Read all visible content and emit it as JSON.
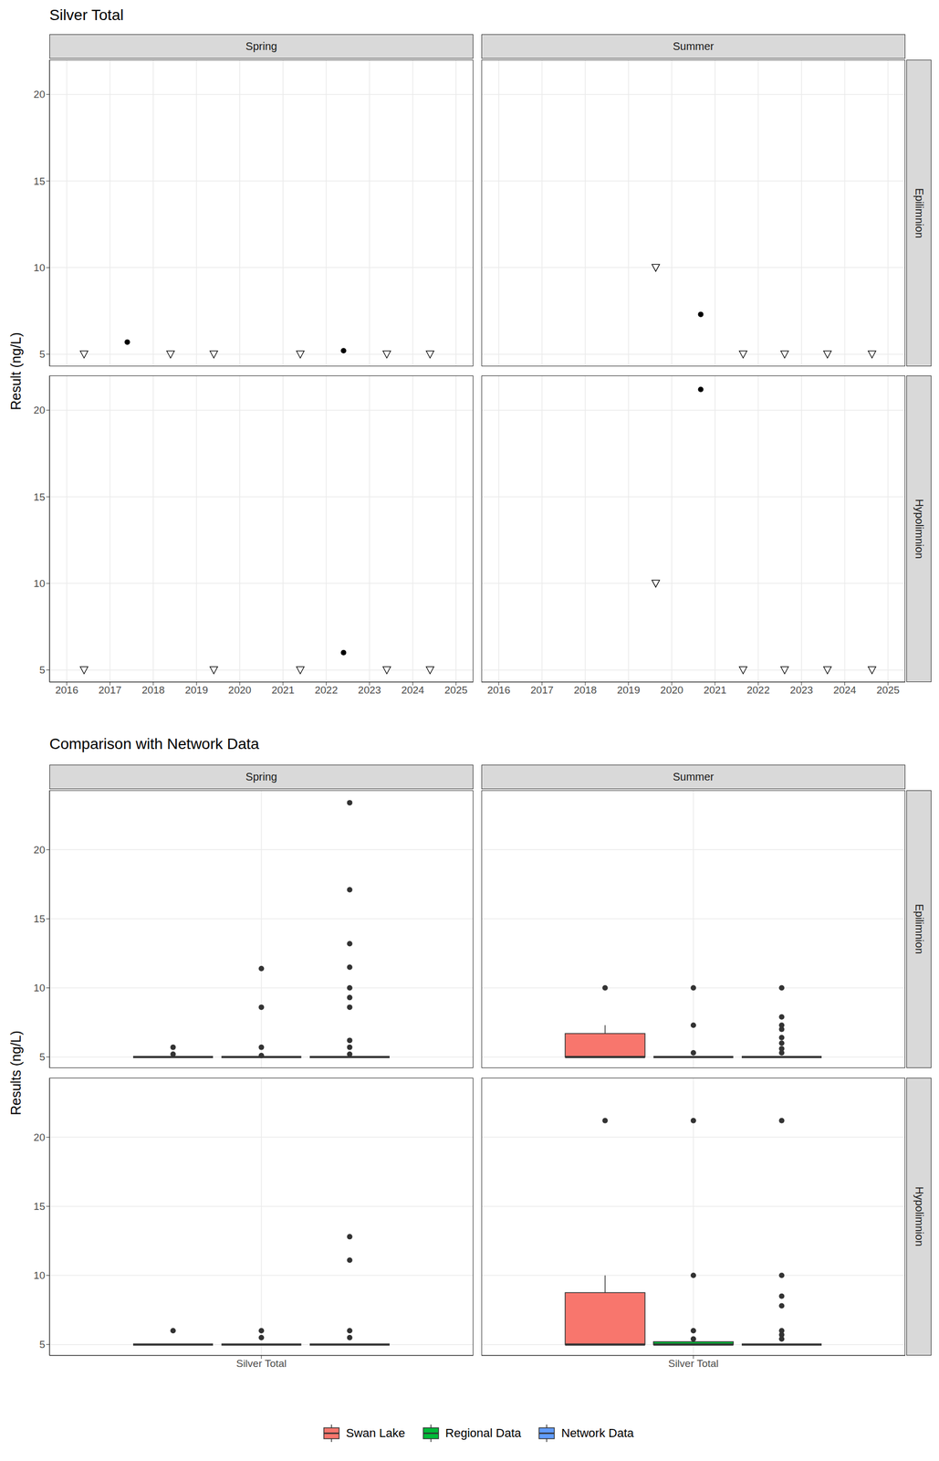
{
  "chart_data": [
    {
      "type": "scatter",
      "title": "Silver Total",
      "y_label": "Result (ng/L)",
      "columns": [
        "Spring",
        "Summer"
      ],
      "rows": [
        "Epilimnion",
        "Hypolimnion"
      ],
      "xlim": [
        2015.6,
        2025.4
      ],
      "xticks": [
        2016,
        2017,
        2018,
        2019,
        2020,
        2021,
        2022,
        2023,
        2024,
        2025
      ],
      "ylim": [
        4.3,
        22
      ],
      "yticks": [
        5,
        10,
        15,
        20
      ],
      "grid": true,
      "panels": [
        [
          {
            "series": [
              {
                "marker": "circle",
                "x": [
                  2017.4,
                  2022.4
                ],
                "values": [
                  5.7,
                  5.2
                ]
              },
              {
                "marker": "triangle_down_open",
                "x": [
                  2016.4,
                  2018.4,
                  2019.4,
                  2021.4,
                  2023.4,
                  2024.4
                ],
                "values": [
                  5,
                  5,
                  5,
                  5,
                  5,
                  5
                ]
              }
            ]
          },
          {
            "series": [
              {
                "marker": "circle",
                "x": [
                  2020.67
                ],
                "values": [
                  7.3
                ]
              },
              {
                "marker": "triangle_down_open",
                "x": [
                  2019.63,
                  2021.65,
                  2022.61,
                  2023.6,
                  2024.63
                ],
                "values": [
                  10,
                  5,
                  5,
                  5,
                  5
                ]
              }
            ]
          }
        ],
        [
          {
            "series": [
              {
                "marker": "circle",
                "x": [
                  2022.4
                ],
                "values": [
                  6.0
                ]
              },
              {
                "marker": "triangle_down_open",
                "x": [
                  2016.4,
                  2019.4,
                  2021.4,
                  2023.4,
                  2024.4
                ],
                "values": [
                  5,
                  5,
                  5,
                  5,
                  5
                ]
              }
            ]
          },
          {
            "series": [
              {
                "marker": "circle",
                "x": [
                  2020.67
                ],
                "values": [
                  21.2
                ]
              },
              {
                "marker": "triangle_down_open",
                "x": [
                  2019.63,
                  2021.65,
                  2022.61,
                  2023.6,
                  2024.63
                ],
                "values": [
                  10,
                  5,
                  5,
                  5,
                  5
                ]
              }
            ]
          }
        ]
      ]
    },
    {
      "type": "boxplot",
      "title": "Comparison with Network Data",
      "y_label": "Results (ng/L)",
      "columns": [
        "Spring",
        "Summer"
      ],
      "rows": [
        "Epilimnion",
        "Hypolimnion"
      ],
      "categories": [
        "Silver Total"
      ],
      "ylim": [
        4.2,
        24.3
      ],
      "yticks": [
        5,
        10,
        15,
        20
      ],
      "grid": true,
      "legend": "bottom",
      "series": [
        {
          "name": "Swan Lake",
          "color": "#F8766D"
        },
        {
          "name": "Regional Data",
          "color": "#00BA38"
        },
        {
          "name": "Network Data",
          "color": "#619CFF"
        }
      ],
      "panels": [
        [
          {
            "boxes": [
              {
                "q1": 5,
                "median": 5,
                "q3": 5,
                "whisker_low": 5,
                "whisker_high": 5,
                "outliers": [
                  5.7,
                  5.2
                ]
              },
              {
                "q1": 5,
                "median": 5,
                "q3": 5,
                "whisker_low": 5,
                "whisker_high": 5,
                "outliers": [
                  11.4,
                  8.6,
                  5.7,
                  5.1
                ]
              },
              {
                "q1": 5,
                "median": 5,
                "q3": 5,
                "whisker_low": 5,
                "whisker_high": 5,
                "outliers": [
                  23.4,
                  17.1,
                  13.2,
                  11.5,
                  10,
                  9.3,
                  8.6,
                  6.2,
                  5.7,
                  5.2
                ]
              }
            ]
          },
          {
            "boxes": [
              {
                "q1": 5,
                "median": 5,
                "q3": 6.7,
                "whisker_low": 5,
                "whisker_high": 7.3,
                "outliers": [
                  10
                ]
              },
              {
                "q1": 5,
                "median": 5,
                "q3": 5,
                "whisker_low": 5,
                "whisker_high": 5,
                "outliers": [
                  10,
                  7.3,
                  5.3
                ]
              },
              {
                "q1": 5,
                "median": 5,
                "q3": 5,
                "whisker_low": 5,
                "whisker_high": 5,
                "outliers": [
                  10,
                  7.9,
                  7.3,
                  7.0,
                  6.4,
                  6.0,
                  5.6,
                  5.3
                ]
              }
            ]
          }
        ],
        [
          {
            "boxes": [
              {
                "q1": 5,
                "median": 5,
                "q3": 5,
                "whisker_low": 5,
                "whisker_high": 5,
                "outliers": [
                  6.0
                ]
              },
              {
                "q1": 5,
                "median": 5,
                "q3": 5,
                "whisker_low": 5,
                "whisker_high": 5,
                "outliers": [
                  6.0,
                  5.5
                ]
              },
              {
                "q1": 5,
                "median": 5,
                "q3": 5,
                "whisker_low": 5,
                "whisker_high": 5,
                "outliers": [
                  12.8,
                  11.1,
                  6.0,
                  5.5
                ]
              }
            ]
          },
          {
            "boxes": [
              {
                "q1": 5,
                "median": 5,
                "q3": 8.75,
                "whisker_low": 5,
                "whisker_high": 10,
                "outliers": [
                  21.2
                ]
              },
              {
                "q1": 5,
                "median": 5,
                "q3": 5.2,
                "whisker_low": 5,
                "whisker_high": 5.2,
                "outliers": [
                  21.2,
                  10,
                  6.0,
                  5.4
                ]
              },
              {
                "q1": 5,
                "median": 5,
                "q3": 5,
                "whisker_low": 5,
                "whisker_high": 5,
                "outliers": [
                  21.2,
                  10,
                  8.5,
                  7.8,
                  6.0,
                  5.7,
                  5.4
                ]
              }
            ]
          }
        ]
      ]
    }
  ]
}
